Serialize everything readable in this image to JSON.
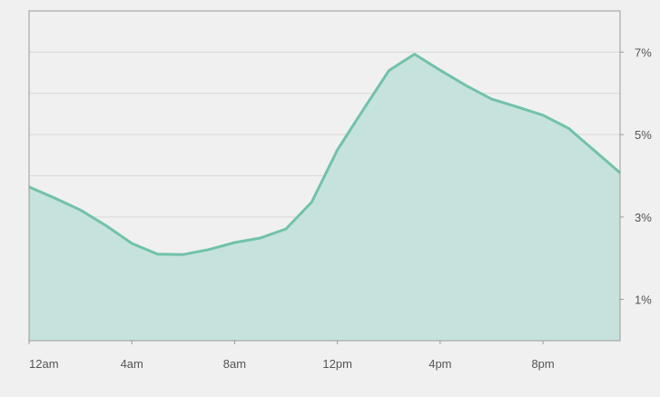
{
  "chart_data": {
    "type": "area",
    "x": [
      "12am",
      "1am",
      "2am",
      "3am",
      "4am",
      "5am",
      "6am",
      "7am",
      "8am",
      "9am",
      "10am",
      "11am",
      "12pm",
      "1pm",
      "2pm",
      "3pm",
      "4pm",
      "5pm",
      "6pm",
      "7pm",
      "8pm",
      "9pm",
      "10pm",
      "11pm"
    ],
    "series": [
      {
        "values": [
          3.73,
          3.46,
          3.17,
          2.79,
          2.36,
          2.1,
          2.09,
          2.21,
          2.38,
          2.49,
          2.71,
          3.36,
          4.63,
          5.6,
          6.55,
          6.95,
          6.56,
          6.19,
          5.86,
          5.67,
          5.47,
          5.15,
          4.61,
          4.07
        ]
      }
    ],
    "xticks": [
      "12am",
      "4am",
      "8am",
      "12pm",
      "4pm",
      "8pm"
    ],
    "yticks": [
      "1%",
      "3%",
      "5%",
      "7%"
    ],
    "ylim": [
      0,
      8
    ],
    "grid": true,
    "y_axis_side": "right",
    "title": "",
    "xlabel": "",
    "ylabel": "",
    "colors": {
      "line": "#71c2aa",
      "fill": "#c6e2dc",
      "grid": "#d8d8d8",
      "axis": "#9a9a9a",
      "background": "#f0f0f0"
    }
  }
}
